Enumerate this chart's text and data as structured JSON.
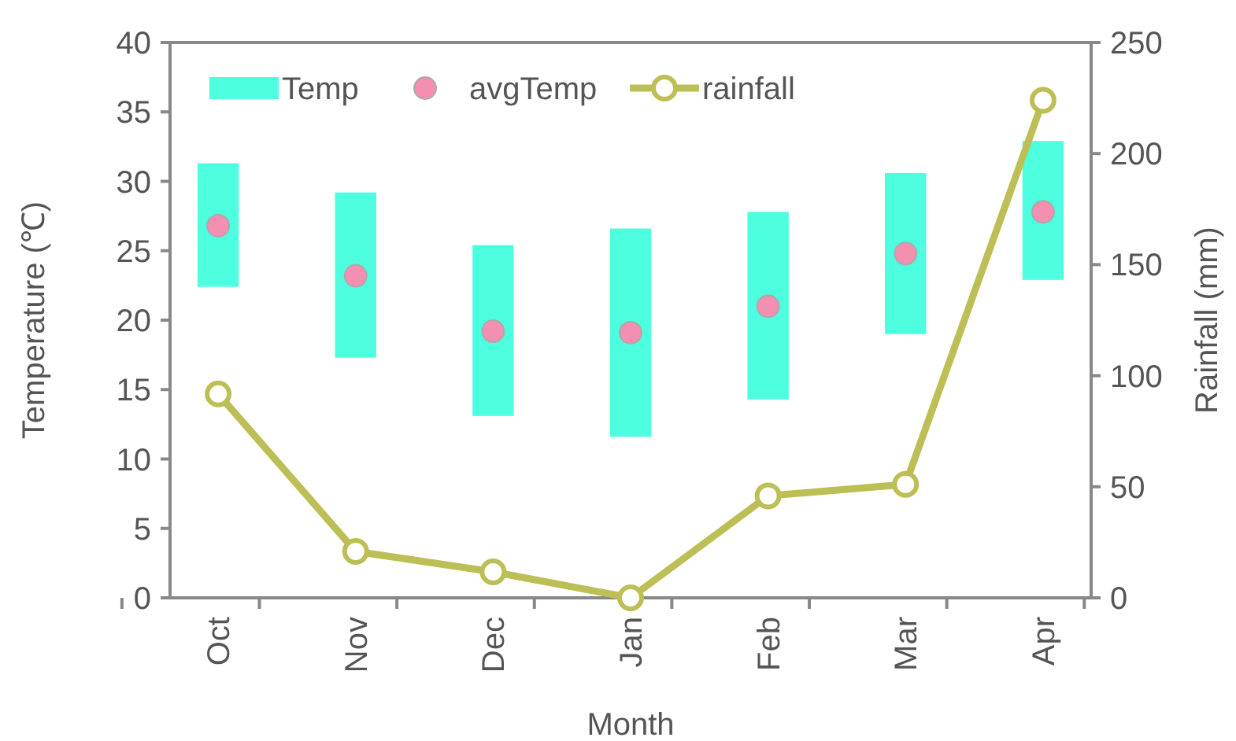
{
  "chart_data": {
    "type": "bar",
    "xlabel": "Month",
    "ylabel": "Temperature (℃)",
    "y2label": "Rainfall (mm)",
    "categories": [
      "Oct",
      "Nov",
      "Dec",
      "Jan",
      "Feb",
      "Mar",
      "Apr"
    ],
    "series": [
      {
        "name": "Temp",
        "color": "#4dffdf",
        "base": [
          22.4,
          17.3,
          13.1,
          11.6,
          14.3,
          19.0,
          22.9
        ],
        "values": [
          8.9,
          11.9,
          12.3,
          15.0,
          13.5,
          11.6,
          10.0
        ]
      },
      {
        "name": "avgTemp",
        "type": "scatter",
        "color": "#f48fb1",
        "marker": "circle",
        "x": [
          "Oct",
          "Nov",
          "Dec",
          "Jan",
          "Feb",
          "Mar",
          "Apr"
        ],
        "values": [
          26.8,
          23.2,
          19.2,
          19.1,
          21.0,
          24.8,
          27.8
        ]
      },
      {
        "name": "rainfall",
        "type": "line",
        "axis": "y2",
        "color": "#bcbf55",
        "marker": "circle",
        "values": [
          91.8,
          20.9,
          11.7,
          0,
          45.9,
          51.1,
          224
        ]
      }
    ],
    "ylim": [
      0,
      40
    ],
    "yticks": [
      0,
      5,
      10,
      15,
      20,
      25,
      30,
      35,
      40
    ],
    "y2lim": [
      0,
      250
    ],
    "y2ticks": [
      0,
      50,
      100,
      150,
      200,
      250
    ],
    "grid": false,
    "legend": "top left"
  }
}
